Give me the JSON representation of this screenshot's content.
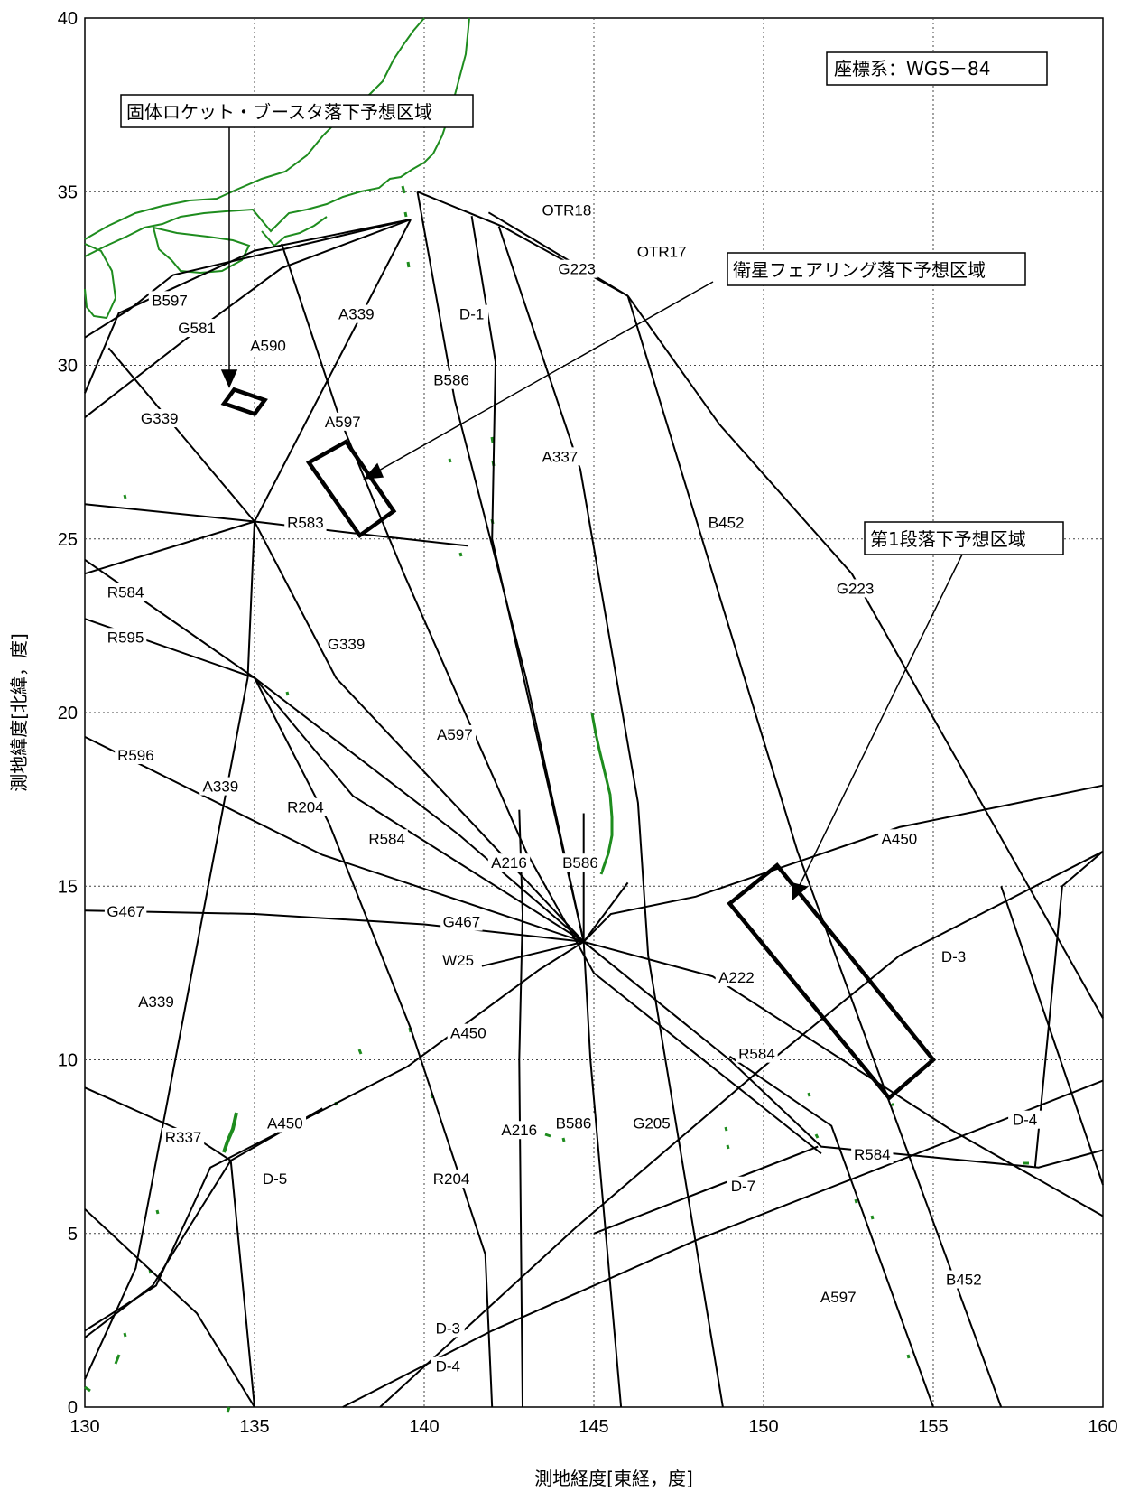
{
  "map": {
    "coordinate_system": "座標系：WGS－84",
    "x_axis_label": "測地経度[東経，度]",
    "y_axis_label": "測地緯度[北緯，度]",
    "lon_range": [
      130,
      160
    ],
    "lat_range": [
      0,
      40
    ],
    "x_ticks": [
      130,
      135,
      140,
      145,
      150,
      155,
      160
    ],
    "y_ticks": [
      0,
      5,
      10,
      15,
      20,
      25,
      30,
      35,
      40
    ],
    "grid": "dotted",
    "colors": {
      "coast": "#1e8c1e",
      "route": "#000000",
      "zone": "#000000"
    }
  },
  "callouts": [
    {
      "id": "srb",
      "text": "固体ロケット・ブースタ落下予想区域"
    },
    {
      "id": "fairing",
      "text": "衛星フェアリング落下予想区域"
    },
    {
      "id": "stage1",
      "text": "第1段落下予想区域"
    }
  ],
  "zones": [
    {
      "id": "srb",
      "corners": [
        [
          134.4,
          29.3
        ],
        [
          134.1,
          28.9
        ],
        [
          135.0,
          28.6
        ],
        [
          135.3,
          29.0
        ]
      ]
    },
    {
      "id": "fairing",
      "corners": [
        [
          136.6,
          27.2
        ],
        [
          137.7,
          27.8
        ],
        [
          139.1,
          25.8
        ],
        [
          138.1,
          25.1
        ]
      ]
    },
    {
      "id": "stage1",
      "corners": [
        [
          149.0,
          14.5
        ],
        [
          150.4,
          15.6
        ],
        [
          155.0,
          10.0
        ],
        [
          153.7,
          8.9
        ]
      ]
    }
  ],
  "route_labels": [
    {
      "text": "OTR18",
      "lon": 144.2,
      "lat": 34.4
    },
    {
      "text": "OTR17",
      "lon": 147.0,
      "lat": 33.2
    },
    {
      "text": "G223",
      "lon": 144.5,
      "lat": 32.7
    },
    {
      "text": "B597",
      "lon": 132.5,
      "lat": 31.8
    },
    {
      "text": "G581",
      "lon": 133.3,
      "lat": 31.0
    },
    {
      "text": "A590",
      "lon": 135.4,
      "lat": 30.5
    },
    {
      "text": "A339",
      "lon": 138.0,
      "lat": 31.4
    },
    {
      "text": "D-1",
      "lon": 141.4,
      "lat": 31.4
    },
    {
      "text": "B586",
      "lon": 140.8,
      "lat": 29.5
    },
    {
      "text": "G339",
      "lon": 132.2,
      "lat": 28.4
    },
    {
      "text": "A597",
      "lon": 137.6,
      "lat": 28.3
    },
    {
      "text": "A337",
      "lon": 144.0,
      "lat": 27.3
    },
    {
      "text": "B452",
      "lon": 148.9,
      "lat": 25.4
    },
    {
      "text": "R583",
      "lon": 136.5,
      "lat": 25.4
    },
    {
      "text": "G223",
      "lon": 152.7,
      "lat": 23.5
    },
    {
      "text": "R584",
      "lon": 131.2,
      "lat": 23.4
    },
    {
      "text": "R595",
      "lon": 131.2,
      "lat": 22.1
    },
    {
      "text": "G339",
      "lon": 137.7,
      "lat": 21.9
    },
    {
      "text": "A597",
      "lon": 140.9,
      "lat": 19.3
    },
    {
      "text": "R596",
      "lon": 131.5,
      "lat": 18.7
    },
    {
      "text": "A339",
      "lon": 134.0,
      "lat": 17.8
    },
    {
      "text": "R204",
      "lon": 136.5,
      "lat": 17.2
    },
    {
      "text": "R584",
      "lon": 138.9,
      "lat": 16.3
    },
    {
      "text": "A450",
      "lon": 154.0,
      "lat": 16.3
    },
    {
      "text": "A216",
      "lon": 142.5,
      "lat": 15.6
    },
    {
      "text": "B586",
      "lon": 144.6,
      "lat": 15.6
    },
    {
      "text": "G467",
      "lon": 131.2,
      "lat": 14.2
    },
    {
      "text": "G467",
      "lon": 141.1,
      "lat": 13.9
    },
    {
      "text": "D-3",
      "lon": 155.6,
      "lat": 12.9
    },
    {
      "text": "W25",
      "lon": 141.0,
      "lat": 12.8
    },
    {
      "text": "A222",
      "lon": 149.2,
      "lat": 12.3
    },
    {
      "text": "A339",
      "lon": 132.1,
      "lat": 11.6
    },
    {
      "text": "A450",
      "lon": 141.3,
      "lat": 10.7
    },
    {
      "text": "R584",
      "lon": 149.8,
      "lat": 10.1
    },
    {
      "text": "D-4",
      "lon": 157.7,
      "lat": 8.2
    },
    {
      "text": "R337",
      "lon": 132.9,
      "lat": 7.7
    },
    {
      "text": "A450",
      "lon": 135.9,
      "lat": 8.1
    },
    {
      "text": "A216",
      "lon": 142.8,
      "lat": 7.9
    },
    {
      "text": "B586",
      "lon": 144.4,
      "lat": 8.1
    },
    {
      "text": "G205",
      "lon": 146.7,
      "lat": 8.1
    },
    {
      "text": "R584",
      "lon": 153.2,
      "lat": 7.2
    },
    {
      "text": "D-5",
      "lon": 135.6,
      "lat": 6.5
    },
    {
      "text": "R204",
      "lon": 140.8,
      "lat": 6.5
    },
    {
      "text": "D-7",
      "lon": 149.4,
      "lat": 6.3
    },
    {
      "text": "B452",
      "lon": 155.9,
      "lat": 3.6
    },
    {
      "text": "A597",
      "lon": 152.2,
      "lat": 3.1
    },
    {
      "text": "D-3",
      "lon": 140.7,
      "lat": 2.2
    },
    {
      "text": "D-4",
      "lon": 140.7,
      "lat": 1.1
    }
  ],
  "routes": [
    [
      [
        130.0,
        29.2
      ],
      [
        131.0,
        31.5
      ],
      [
        135.0,
        33.3
      ],
      [
        139.6,
        34.2
      ]
    ],
    [
      [
        130.0,
        30.8
      ],
      [
        131.3,
        31.6
      ],
      [
        132.6,
        32.6
      ],
      [
        139.6,
        34.2
      ]
    ],
    [
      [
        130.0,
        28.5
      ],
      [
        133.3,
        31.0
      ],
      [
        135.8,
        32.8
      ],
      [
        139.6,
        34.2
      ]
    ],
    [
      [
        130.0,
        24.0
      ],
      [
        135.0,
        25.5
      ],
      [
        139.6,
        34.2
      ]
    ],
    [
      [
        139.8,
        35.0
      ],
      [
        142.3,
        34.0
      ],
      [
        146.0,
        32.0
      ]
    ],
    [
      [
        141.9,
        34.4
      ],
      [
        146.0,
        32.0
      ]
    ],
    [
      [
        146.0,
        32.0
      ],
      [
        148.7,
        28.3
      ],
      [
        152.6,
        24.0
      ],
      [
        160.0,
        11.2
      ]
    ],
    [
      [
        146.0,
        32.0
      ],
      [
        151.0,
        16.0
      ],
      [
        157.0,
        0.0
      ]
    ],
    [
      [
        139.8,
        35.0
      ],
      [
        140.9,
        29.0
      ],
      [
        143.0,
        21.0
      ],
      [
        144.7,
        13.4
      ]
    ],
    [
      [
        141.4,
        34.3
      ],
      [
        142.1,
        30.1
      ],
      [
        142.0,
        25.0
      ],
      [
        144.7,
        13.4
      ]
    ],
    [
      [
        142.2,
        34.0
      ],
      [
        144.6,
        27.0
      ],
      [
        146.3,
        17.4
      ],
      [
        146.6,
        13.0
      ],
      [
        148.8,
        0.0
      ]
    ],
    [
      [
        135.8,
        33.5
      ],
      [
        137.5,
        28.5
      ],
      [
        139.4,
        24.0
      ],
      [
        143.0,
        16.0
      ],
      [
        145.0,
        12.5
      ],
      [
        151.7,
        7.3
      ]
    ],
    [
      [
        130.0,
        26.0
      ],
      [
        135.0,
        25.5
      ],
      [
        138.5,
        25.1
      ],
      [
        141.3,
        24.8
      ]
    ],
    [
      [
        130.7,
        30.5
      ],
      [
        135.0,
        25.5
      ],
      [
        137.4,
        21.0
      ],
      [
        144.7,
        13.4
      ]
    ],
    [
      [
        135.0,
        25.5
      ],
      [
        134.8,
        21.0
      ],
      [
        131.5,
        4.0
      ],
      [
        130.0,
        0.8
      ]
    ],
    [
      [
        130.0,
        24.4
      ],
      [
        135.0,
        21.0
      ],
      [
        137.9,
        17.6
      ],
      [
        144.7,
        13.4
      ]
    ],
    [
      [
        130.0,
        22.7
      ],
      [
        135.0,
        21.0
      ],
      [
        141.0,
        16.5
      ],
      [
        144.7,
        13.4
      ]
    ],
    [
      [
        135.0,
        21.0
      ],
      [
        137.2,
        16.8
      ],
      [
        139.6,
        10.9
      ],
      [
        141.8,
        4.4
      ],
      [
        142.0,
        0.0
      ]
    ],
    [
      [
        130.0,
        19.3
      ],
      [
        137.0,
        15.9
      ],
      [
        144.7,
        13.4
      ]
    ],
    [
      [
        130.0,
        14.3
      ],
      [
        135.0,
        14.2
      ],
      [
        140.0,
        13.9
      ],
      [
        144.7,
        13.4
      ]
    ],
    [
      [
        142.8,
        17.2
      ],
      [
        142.9,
        14.2
      ],
      [
        142.8,
        10.0
      ],
      [
        142.9,
        0.0
      ]
    ],
    [
      [
        144.7,
        13.4
      ],
      [
        144.9,
        10.0
      ],
      [
        145.8,
        0.0
      ]
    ],
    [
      [
        144.7,
        17.1
      ],
      [
        144.7,
        13.4
      ]
    ],
    [
      [
        146.0,
        15.1
      ],
      [
        144.7,
        13.4
      ]
    ],
    [
      [
        144.7,
        13.4
      ],
      [
        145.5,
        14.2
      ],
      [
        148.0,
        14.7
      ],
      [
        154.0,
        16.7
      ],
      [
        160.0,
        17.9
      ]
    ],
    [
      [
        144.7,
        13.4
      ],
      [
        143.4,
        12.6
      ],
      [
        139.5,
        9.8
      ],
      [
        133.7,
        6.9
      ],
      [
        132.1,
        3.5
      ],
      [
        130.0,
        2.2
      ]
    ],
    [
      [
        144.7,
        13.4
      ],
      [
        141.7,
        12.7
      ]
    ],
    [
      [
        144.7,
        13.4
      ],
      [
        148.5,
        12.4
      ],
      [
        155.5,
        8.0
      ],
      [
        160.0,
        5.5
      ]
    ],
    [
      [
        144.7,
        13.4
      ],
      [
        149.0,
        10.0
      ],
      [
        151.7,
        7.5
      ],
      [
        158.1,
        6.9
      ],
      [
        160.0,
        7.4
      ]
    ],
    [
      [
        130.0,
        9.2
      ],
      [
        133.2,
        7.8
      ],
      [
        134.3,
        7.1
      ],
      [
        135.0,
        0.0
      ]
    ],
    [
      [
        130.0,
        5.7
      ],
      [
        133.3,
        2.7
      ],
      [
        135.0,
        0.0
      ]
    ],
    [
      [
        130.0,
        2.0
      ],
      [
        132.0,
        3.5
      ],
      [
        134.3,
        7.1
      ],
      [
        137.0,
        8.6
      ]
    ],
    [
      [
        138.7,
        0.0
      ],
      [
        144.5,
        5.2
      ],
      [
        150.0,
        9.8
      ],
      [
        154.0,
        13.0
      ],
      [
        160.0,
        16.0
      ]
    ],
    [
      [
        137.6,
        0.0
      ],
      [
        142.0,
        2.2
      ],
      [
        148.0,
        4.8
      ],
      [
        160.0,
        9.4
      ]
    ],
    [
      [
        145.0,
        5.0
      ],
      [
        151.6,
        7.5
      ]
    ],
    [
      [
        158.0,
        6.9
      ],
      [
        158.8,
        15.0
      ],
      [
        160.0,
        16.0
      ]
    ],
    [
      [
        157.0,
        15.0
      ],
      [
        160.0,
        6.4
      ]
    ],
    [
      [
        149.0,
        10.1
      ],
      [
        152.0,
        8.1
      ],
      [
        155.0,
        0.0
      ]
    ]
  ]
}
